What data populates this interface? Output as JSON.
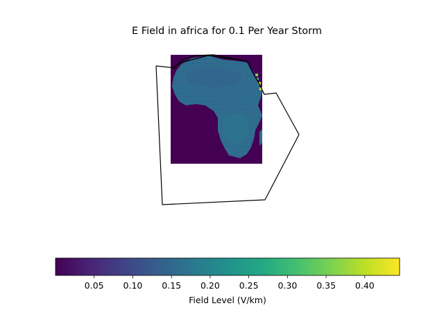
{
  "chart_data": {
    "type": "heatmap",
    "title": "E Field in africa for 0.1 Per Year Storm",
    "region": "africa",
    "colormap": "viridis",
    "colorbar": {
      "label": "Field Level (V/km)",
      "range": [
        0.0,
        0.445
      ],
      "ticks": [
        0.05,
        0.1,
        0.15,
        0.2,
        0.25,
        0.3,
        0.35,
        0.4
      ],
      "tick_labels": [
        "0.05",
        "0.10",
        "0.15",
        "0.20",
        "0.25",
        "0.30",
        "0.35",
        "0.40"
      ],
      "orientation": "horizontal",
      "placement": "bottom"
    },
    "map": {
      "ocean_value": 0.005,
      "land_value_range": [
        0.1,
        0.22
      ],
      "peak_value": 0.44,
      "peak_location": "Red Sea coast (north-east edge)"
    },
    "boundary_polygon": {
      "stroke": "#000000",
      "fill": "none"
    },
    "grid": false,
    "axes_visible": false
  }
}
